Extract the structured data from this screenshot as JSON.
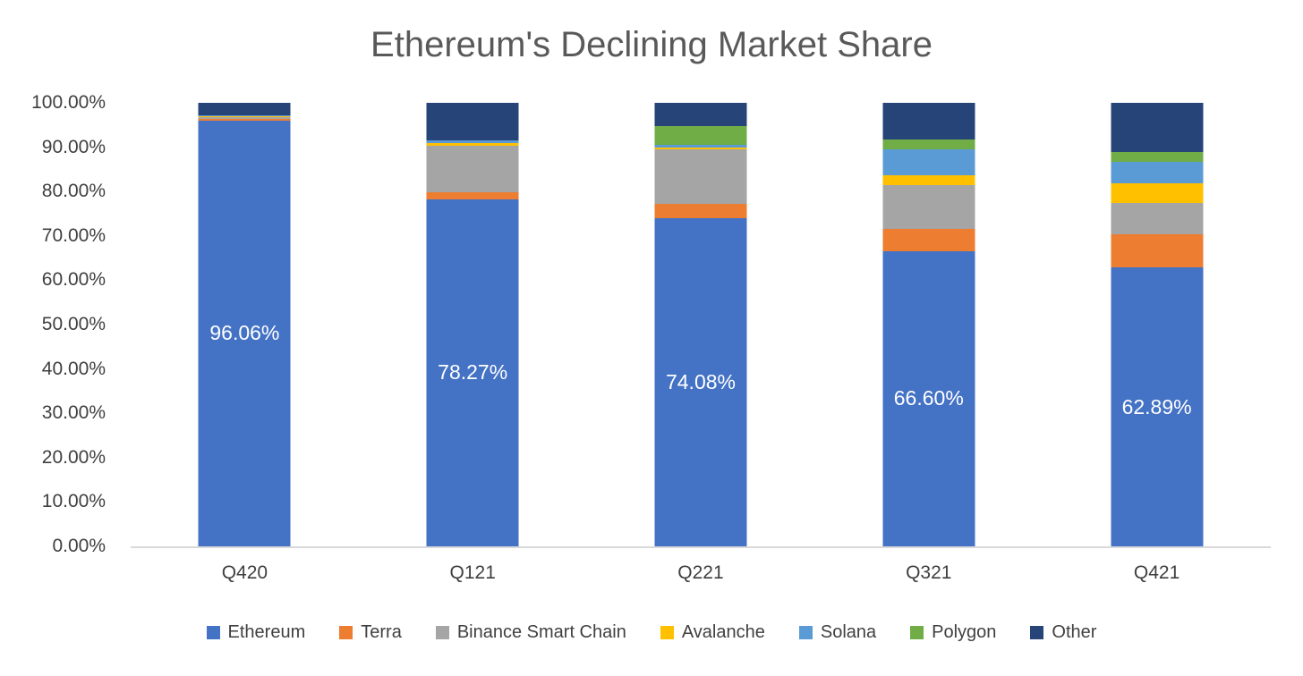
{
  "chart_data": {
    "type": "bar",
    "stacked": true,
    "title": "Ethereum's Declining Market Share",
    "categories": [
      "Q420",
      "Q121",
      "Q221",
      "Q321",
      "Q421"
    ],
    "series": [
      {
        "name": "Ethereum",
        "color": "#4472C4",
        "values": [
          96.06,
          78.27,
          74.08,
          66.6,
          62.89
        ],
        "value_labels": [
          "96.06%",
          "78.27%",
          "74.08%",
          "66.60%",
          "62.89%"
        ]
      },
      {
        "name": "Terra",
        "color": "#ED7D31",
        "values": [
          0.4,
          1.6,
          3.2,
          5.0,
          7.5
        ]
      },
      {
        "name": "Binance Smart Chain",
        "color": "#A5A5A5",
        "values": [
          0.55,
          10.5,
          12.2,
          9.9,
          7.1
        ]
      },
      {
        "name": "Avalanche",
        "color": "#FFC000",
        "values": [
          0.05,
          0.6,
          0.4,
          2.2,
          4.4
        ]
      },
      {
        "name": "Solana",
        "color": "#5B9BD5",
        "values": [
          0.15,
          0.6,
          0.6,
          5.9,
          4.8
        ]
      },
      {
        "name": "Polygon",
        "color": "#70AD47",
        "values": [
          0.0,
          0.0,
          4.2,
          2.2,
          2.2
        ]
      },
      {
        "name": "Other",
        "color": "#264478",
        "values": [
          2.8,
          8.4,
          5.3,
          8.2,
          11.1
        ]
      }
    ],
    "y_ticks": [
      "100.00%",
      "90.00%",
      "80.00%",
      "70.00%",
      "60.00%",
      "50.00%",
      "40.00%",
      "30.00%",
      "20.00%",
      "10.00%",
      "0.00%"
    ],
    "ylim": [
      0,
      100
    ],
    "xlabel": "",
    "ylabel": "",
    "grid": false,
    "legend_position": "bottom",
    "legend": [
      "Ethereum",
      "Terra",
      "Binance Smart Chain",
      "Avalanche",
      "Solana",
      "Polygon",
      "Other"
    ]
  },
  "style": {
    "title_color": "#595959",
    "axis_text_color": "#404040",
    "axis_line_color": "#D9D9D9",
    "data_label_color": "#FFFFFF",
    "background": "#FFFFFF"
  }
}
